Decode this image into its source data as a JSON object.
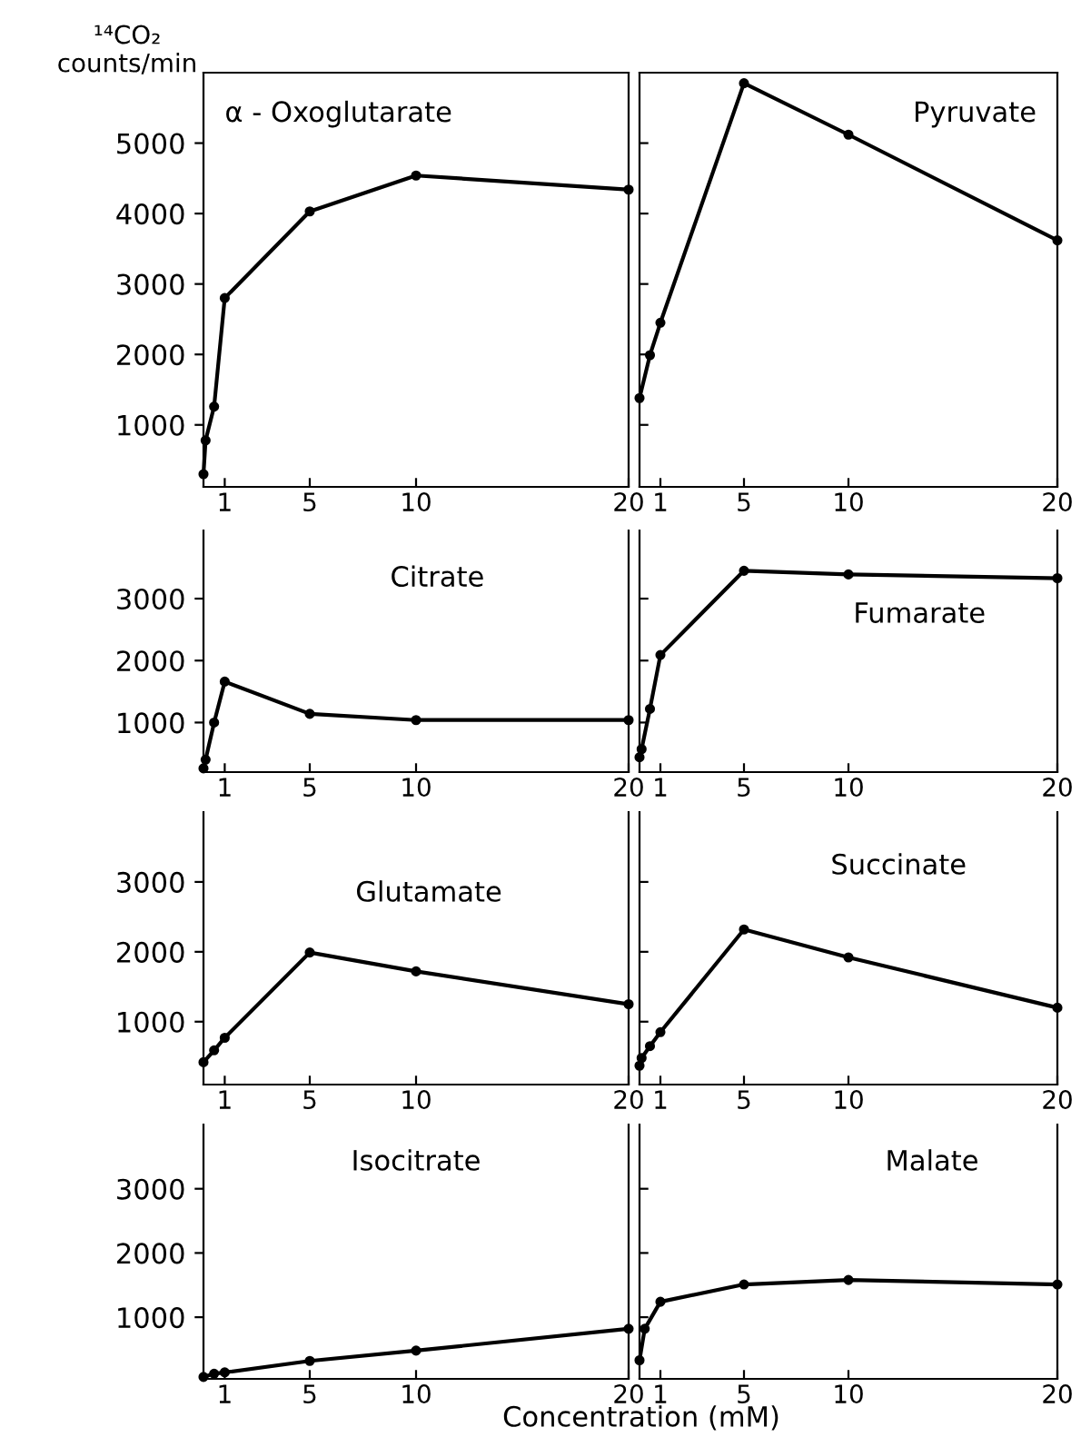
{
  "chart_data": [
    {
      "type": "line",
      "title": "α - Oxoglutarate",
      "ylabel": "¹⁴CO₂\ncounts/min",
      "x": [
        0,
        0.1,
        0.5,
        1,
        5,
        10,
        20
      ],
      "series": [
        {
          "color": "#000000",
          "values": [
            300,
            780,
            1260,
            2800,
            4030,
            4540,
            4340
          ]
        }
      ],
      "xlim": [
        0,
        20
      ],
      "xticks": [
        1,
        5,
        10,
        20
      ],
      "ylim": [
        120,
        6000
      ],
      "yticks": [
        1000,
        2000,
        3000,
        4000,
        5000
      ],
      "marker": "circle",
      "line_style": "solid",
      "grid": false
    },
    {
      "type": "line",
      "title": "Pyruvate",
      "x": [
        0,
        0.5,
        1,
        5,
        10,
        20
      ],
      "series": [
        {
          "color": "#000000",
          "values": [
            1380,
            1990,
            2450,
            5850,
            5120,
            3620
          ]
        }
      ],
      "xlim": [
        0,
        20
      ],
      "xticks": [
        1,
        5,
        10,
        20
      ],
      "ylim": [
        120,
        6000
      ],
      "yticks": [
        {
          "value": 1000,
          "label": null
        },
        {
          "value": 2000,
          "label": null
        },
        {
          "value": 3000,
          "label": null
        },
        {
          "value": 4000,
          "label": null
        },
        {
          "value": 5000,
          "label": null
        }
      ],
      "tick_labels": "x",
      "marker": "circle",
      "line_style": "solid",
      "grid": false
    },
    {
      "type": "line",
      "title": "Citrate",
      "x": [
        0,
        0.1,
        0.5,
        1,
        5,
        10,
        20
      ],
      "series": [
        {
          "color": "#000000",
          "values": [
            260,
            400,
            1000,
            1660,
            1140,
            1040,
            1040
          ]
        }
      ],
      "xlim": [
        0,
        20
      ],
      "xticks": [
        1,
        5,
        10,
        20
      ],
      "ylim": [
        200,
        4100
      ],
      "yticks": [
        1000,
        2000,
        3000
      ],
      "marker": "circle",
      "line_style": "solid",
      "grid": false
    },
    {
      "type": "line",
      "title": "Fumarate",
      "x": [
        0,
        0.1,
        0.5,
        1,
        5,
        10,
        20
      ],
      "series": [
        {
          "color": "#000000",
          "values": [
            440,
            570,
            1220,
            2090,
            3450,
            3390,
            3330
          ]
        }
      ],
      "xlim": [
        0,
        20
      ],
      "xticks": [
        1,
        5,
        10,
        20
      ],
      "ylim": [
        200,
        4100
      ],
      "yticks": [
        {
          "value": 1000,
          "label": null
        },
        {
          "value": 2000,
          "label": null
        },
        {
          "value": 3000,
          "label": null
        }
      ],
      "tick_labels": "x",
      "marker": "circle",
      "line_style": "solid",
      "grid": false
    },
    {
      "type": "line",
      "title": "Glutamate",
      "x": [
        0,
        0.5,
        1,
        5,
        10,
        20
      ],
      "series": [
        {
          "color": "#000000",
          "values": [
            420,
            590,
            770,
            1990,
            1720,
            1250
          ]
        }
      ],
      "xlim": [
        0,
        20
      ],
      "xticks": [
        1,
        5,
        10,
        20
      ],
      "ylim": [
        100,
        4000
      ],
      "yticks": [
        1000,
        2000,
        3000
      ],
      "marker": "circle",
      "line_style": "solid",
      "grid": false
    },
    {
      "type": "line",
      "title": "Succinate",
      "x": [
        0,
        0.1,
        0.5,
        1,
        5,
        10,
        20
      ],
      "series": [
        {
          "color": "#000000",
          "values": [
            370,
            480,
            650,
            850,
            2320,
            1920,
            1200
          ]
        }
      ],
      "xlim": [
        0,
        20
      ],
      "xticks": [
        1,
        5,
        10,
        20
      ],
      "ylim": [
        100,
        4000
      ],
      "yticks": [
        {
          "value": 1000,
          "label": null
        },
        {
          "value": 2000,
          "label": null
        },
        {
          "value": 3000,
          "label": null
        }
      ],
      "tick_labels": "x",
      "marker": "circle",
      "line_style": "solid",
      "grid": false
    },
    {
      "type": "line",
      "title": "Isocitrate",
      "x": [
        0,
        0.5,
        1,
        5,
        10,
        20
      ],
      "series": [
        {
          "color": "#000000",
          "values": [
            70,
            120,
            140,
            320,
            480,
            820
          ]
        }
      ],
      "xlim": [
        0,
        20
      ],
      "xticks": [
        1,
        5,
        10,
        20
      ],
      "ylim": [
        40,
        4000
      ],
      "yticks": [
        1000,
        2000,
        3000
      ],
      "marker": "circle",
      "line_style": "solid",
      "grid": false
    },
    {
      "type": "line",
      "title": "Malate",
      "xlabel": "Concentration (mM)",
      "x": [
        0,
        0.25,
        1,
        5,
        10,
        20
      ],
      "series": [
        {
          "color": "#000000",
          "values": [
            330,
            820,
            1240,
            1510,
            1580,
            1510
          ]
        }
      ],
      "xlim": [
        0,
        20
      ],
      "xticks": [
        1,
        5,
        10,
        20
      ],
      "ylim": [
        40,
        4000
      ],
      "yticks": [
        {
          "value": 1000,
          "label": null
        },
        {
          "value": 2000,
          "label": null
        },
        {
          "value": 3000,
          "label": null
        }
      ],
      "tick_labels": "x",
      "marker": "circle",
      "line_style": "solid",
      "grid": false
    }
  ]
}
